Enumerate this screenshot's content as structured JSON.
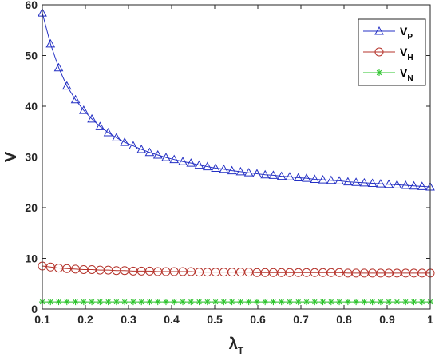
{
  "chart_data": {
    "type": "line",
    "xlabel": "λ",
    "xlabel_sub": "T",
    "ylabel": "V",
    "xlim": [
      0.1,
      1
    ],
    "ylim": [
      0,
      60
    ],
    "xticks": [
      "0.1",
      "0.2",
      "0.3",
      "0.4",
      "0.5",
      "0.6",
      "0.7",
      "0.8",
      "0.9",
      "1"
    ],
    "yticks": [
      "0",
      "10",
      "20",
      "30",
      "40",
      "50",
      "60"
    ],
    "grid": false,
    "legend_position": "top-right",
    "x": [
      0.1,
      0.119,
      0.138,
      0.157,
      0.177,
      0.196,
      0.215,
      0.234,
      0.253,
      0.272,
      0.291,
      0.311,
      0.33,
      0.349,
      0.368,
      0.387,
      0.406,
      0.426,
      0.445,
      0.464,
      0.483,
      0.502,
      0.521,
      0.54,
      0.56,
      0.579,
      0.598,
      0.617,
      0.636,
      0.655,
      0.674,
      0.694,
      0.713,
      0.732,
      0.751,
      0.77,
      0.789,
      0.809,
      0.828,
      0.847,
      0.866,
      0.885,
      0.904,
      0.923,
      0.943,
      0.962,
      0.981,
      1.0
    ],
    "series": [
      {
        "name": "V",
        "name_sub": "P",
        "color": "#2430c4",
        "marker": "triangle",
        "values": [
          58.4,
          52.3,
          47.6,
          44.0,
          41.3,
          39.2,
          37.5,
          36.0,
          34.8,
          33.8,
          32.9,
          32.2,
          31.5,
          30.9,
          30.4,
          29.9,
          29.5,
          29.1,
          28.8,
          28.4,
          28.1,
          27.8,
          27.6,
          27.3,
          27.1,
          26.9,
          26.7,
          26.5,
          26.4,
          26.2,
          26.1,
          25.9,
          25.8,
          25.6,
          25.5,
          25.4,
          25.3,
          25.1,
          25.0,
          24.9,
          24.8,
          24.7,
          24.6,
          24.5,
          24.4,
          24.3,
          24.2,
          24.1
        ]
      },
      {
        "name": "V",
        "name_sub": "H",
        "color": "#b5332b",
        "marker": "circle",
        "values": [
          8.5,
          8.3,
          8.1,
          8.0,
          7.9,
          7.8,
          7.8,
          7.7,
          7.7,
          7.6,
          7.6,
          7.5,
          7.5,
          7.5,
          7.4,
          7.4,
          7.4,
          7.4,
          7.4,
          7.3,
          7.3,
          7.3,
          7.3,
          7.3,
          7.3,
          7.3,
          7.2,
          7.2,
          7.2,
          7.2,
          7.2,
          7.2,
          7.2,
          7.2,
          7.2,
          7.2,
          7.2,
          7.1,
          7.1,
          7.1,
          7.1,
          7.1,
          7.1,
          7.1,
          7.1,
          7.1,
          7.1,
          7.1
        ]
      },
      {
        "name": "V",
        "name_sub": "N",
        "color": "#2ec42e",
        "marker": "asterisk",
        "values": [
          1.4,
          1.4,
          1.4,
          1.4,
          1.4,
          1.4,
          1.4,
          1.4,
          1.4,
          1.4,
          1.4,
          1.4,
          1.4,
          1.4,
          1.4,
          1.4,
          1.4,
          1.4,
          1.4,
          1.4,
          1.4,
          1.4,
          1.4,
          1.4,
          1.4,
          1.4,
          1.4,
          1.4,
          1.4,
          1.4,
          1.4,
          1.4,
          1.4,
          1.4,
          1.4,
          1.4,
          1.4,
          1.4,
          1.4,
          1.4,
          1.4,
          1.4,
          1.4,
          1.4,
          1.4,
          1.4,
          1.4,
          1.4
        ]
      }
    ]
  }
}
